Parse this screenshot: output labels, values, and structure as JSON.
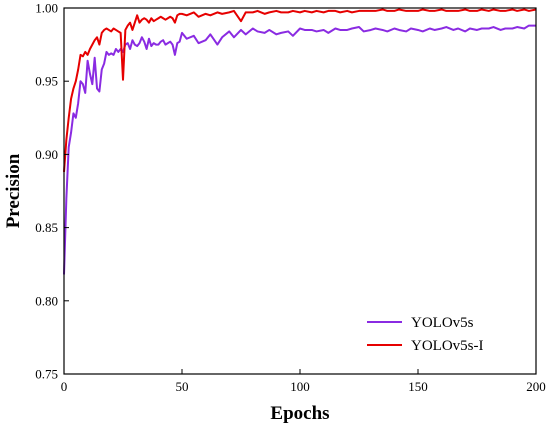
{
  "chart_data": {
    "type": "line",
    "title": "",
    "xlabel": "Epochs",
    "ylabel": "Precision",
    "xlim": [
      0,
      200
    ],
    "ylim": [
      0.75,
      1.0
    ],
    "x_ticks": [
      0,
      50,
      100,
      150,
      200
    ],
    "x_tick_labels": [
      "0",
      "50",
      "100",
      "150",
      "200"
    ],
    "y_ticks": [
      0.75,
      0.8,
      0.85,
      0.9,
      0.95,
      1.0
    ],
    "y_tick_labels": [
      "0.75",
      "0.80",
      "0.85",
      "0.90",
      "0.95",
      "1.00"
    ],
    "grid": false,
    "legend_position": "bottom-right",
    "x": [
      0,
      1,
      2,
      3,
      4,
      5,
      6,
      7,
      8,
      9,
      10,
      11,
      12,
      13,
      14,
      15,
      16,
      17,
      18,
      19,
      20,
      21,
      22,
      23,
      24,
      25,
      26,
      27,
      28,
      29,
      30,
      31,
      32,
      33,
      34,
      35,
      36,
      37,
      38,
      39,
      40,
      41,
      42,
      43,
      44,
      45,
      46,
      47,
      48,
      49,
      50,
      52,
      55,
      57,
      60,
      62,
      65,
      67,
      70,
      72,
      75,
      77,
      80,
      82,
      85,
      87,
      90,
      92,
      95,
      97,
      100,
      102,
      105,
      107,
      110,
      112,
      115,
      117,
      120,
      122,
      125,
      127,
      130,
      132,
      135,
      137,
      140,
      142,
      145,
      147,
      150,
      152,
      155,
      157,
      160,
      162,
      165,
      167,
      170,
      172,
      175,
      177,
      180,
      182,
      185,
      187,
      190,
      192,
      195,
      197,
      200
    ],
    "series": [
      {
        "name": "YOLOv5s",
        "color": "#8a2be2",
        "values": [
          0.818,
          0.87,
          0.905,
          0.915,
          0.928,
          0.925,
          0.935,
          0.95,
          0.948,
          0.942,
          0.964,
          0.955,
          0.948,
          0.966,
          0.945,
          0.943,
          0.958,
          0.962,
          0.97,
          0.968,
          0.969,
          0.968,
          0.972,
          0.97,
          0.972,
          0.97,
          0.975,
          0.976,
          0.972,
          0.978,
          0.975,
          0.974,
          0.976,
          0.98,
          0.977,
          0.972,
          0.979,
          0.974,
          0.976,
          0.975,
          0.975,
          0.977,
          0.978,
          0.975,
          0.976,
          0.977,
          0.975,
          0.968,
          0.976,
          0.977,
          0.983,
          0.979,
          0.981,
          0.976,
          0.978,
          0.982,
          0.975,
          0.98,
          0.984,
          0.98,
          0.985,
          0.982,
          0.986,
          0.984,
          0.983,
          0.985,
          0.982,
          0.983,
          0.984,
          0.981,
          0.986,
          0.985,
          0.985,
          0.984,
          0.985,
          0.983,
          0.986,
          0.985,
          0.985,
          0.986,
          0.987,
          0.984,
          0.985,
          0.986,
          0.985,
          0.984,
          0.986,
          0.985,
          0.984,
          0.986,
          0.985,
          0.984,
          0.986,
          0.985,
          0.986,
          0.987,
          0.985,
          0.986,
          0.984,
          0.986,
          0.985,
          0.986,
          0.986,
          0.987,
          0.985,
          0.986,
          0.986,
          0.987,
          0.986,
          0.988,
          0.988
        ]
      },
      {
        "name": "YOLOv5s-I",
        "color": "#e60000",
        "values": [
          0.888,
          0.91,
          0.925,
          0.938,
          0.945,
          0.95,
          0.958,
          0.968,
          0.967,
          0.97,
          0.968,
          0.972,
          0.975,
          0.978,
          0.98,
          0.975,
          0.983,
          0.985,
          0.986,
          0.985,
          0.984,
          0.986,
          0.985,
          0.984,
          0.983,
          0.951,
          0.985,
          0.988,
          0.99,
          0.985,
          0.99,
          0.995,
          0.99,
          0.992,
          0.993,
          0.992,
          0.99,
          0.993,
          0.991,
          0.992,
          0.993,
          0.994,
          0.993,
          0.992,
          0.993,
          0.994,
          0.993,
          0.99,
          0.995,
          0.996,
          0.996,
          0.995,
          0.997,
          0.994,
          0.996,
          0.995,
          0.997,
          0.996,
          0.997,
          0.998,
          0.991,
          0.997,
          0.997,
          0.998,
          0.996,
          0.997,
          0.998,
          0.997,
          0.997,
          0.998,
          0.997,
          0.998,
          0.997,
          0.998,
          0.997,
          0.998,
          0.998,
          0.997,
          0.998,
          0.997,
          0.998,
          0.998,
          0.998,
          0.998,
          0.999,
          0.998,
          0.998,
          0.999,
          0.998,
          0.998,
          0.998,
          0.999,
          0.998,
          0.998,
          0.999,
          0.998,
          0.998,
          0.998,
          0.999,
          0.998,
          0.998,
          0.999,
          0.998,
          0.999,
          0.998,
          0.998,
          0.999,
          0.998,
          0.999,
          0.998,
          0.999
        ]
      }
    ]
  }
}
